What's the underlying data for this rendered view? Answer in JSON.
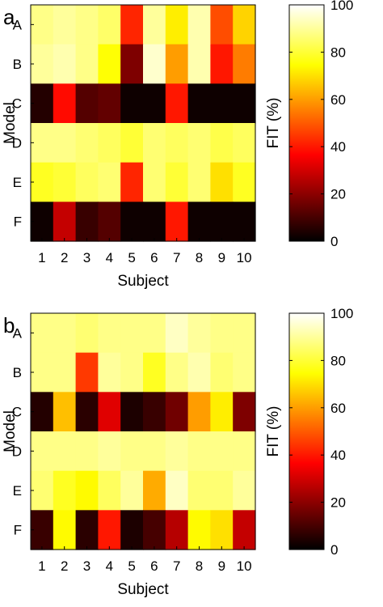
{
  "chart_data": [
    {
      "type": "heatmap",
      "panel_label": "a",
      "xlabel": "Subject",
      "ylabel": "Model",
      "x_categories": [
        "1",
        "2",
        "3",
        "4",
        "5",
        "6",
        "7",
        "8",
        "9",
        "10"
      ],
      "y_categories": [
        "A",
        "B",
        "C",
        "D",
        "E",
        "F"
      ],
      "values": [
        [
          88,
          90,
          88,
          85,
          42,
          90,
          72,
          92,
          48,
          68
        ],
        [
          90,
          92,
          88,
          75,
          18,
          95,
          60,
          92,
          40,
          55
        ],
        [
          5,
          38,
          12,
          14,
          2,
          2,
          40,
          2,
          2,
          2
        ],
        [
          88,
          88,
          86,
          84,
          80,
          86,
          84,
          86,
          82,
          84
        ],
        [
          78,
          80,
          84,
          86,
          42,
          86,
          80,
          86,
          70,
          78
        ],
        [
          2,
          28,
          8,
          12,
          2,
          2,
          40,
          2,
          2,
          2
        ]
      ],
      "colorbar": {
        "label": "FIT (%)",
        "range": [
          0,
          100
        ],
        "ticks": [
          0,
          20,
          40,
          60,
          80,
          100
        ],
        "colormap": "hot"
      }
    },
    {
      "type": "heatmap",
      "panel_label": "b",
      "xlabel": "Subject",
      "ylabel": "Model",
      "x_categories": [
        "1",
        "2",
        "3",
        "4",
        "5",
        "6",
        "7",
        "8",
        "9",
        "10"
      ],
      "y_categories": [
        "A",
        "B",
        "C",
        "D",
        "E",
        "F"
      ],
      "values": [
        [
          88,
          88,
          86,
          88,
          88,
          88,
          94,
          90,
          88,
          88
        ],
        [
          88,
          88,
          45,
          90,
          88,
          78,
          88,
          92,
          86,
          88
        ],
        [
          5,
          65,
          6,
          32,
          4,
          8,
          16,
          60,
          72,
          18
        ],
        [
          88,
          88,
          88,
          90,
          88,
          88,
          90,
          88,
          88,
          88
        ],
        [
          86,
          78,
          74,
          84,
          90,
          62,
          94,
          86,
          86,
          90
        ],
        [
          8,
          74,
          6,
          40,
          4,
          10,
          26,
          74,
          70,
          28
        ]
      ],
      "colorbar": {
        "label": "FIT (%)",
        "range": [
          0,
          100
        ],
        "ticks": [
          0,
          20,
          40,
          60,
          80,
          100
        ],
        "colormap": "hot"
      }
    }
  ]
}
